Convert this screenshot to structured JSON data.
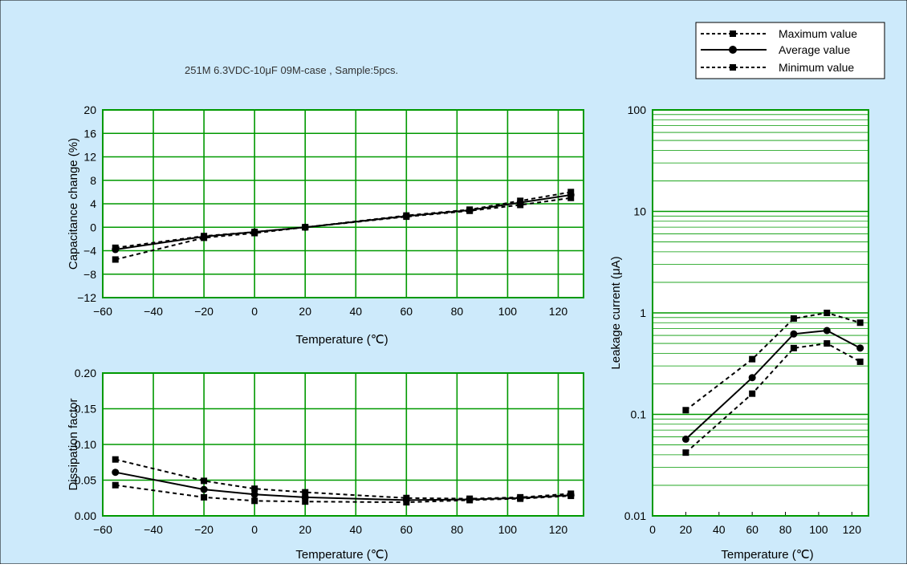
{
  "subtitle": "251M 6.3VDC-10μF 09M-case , Sample:5pcs.",
  "legend": {
    "max": "Maximum value",
    "avg": "Average value",
    "min": "Minimum value"
  },
  "colors": {
    "background": "#cdeafb",
    "plot_bg": "#ffffff",
    "grid": "#009900",
    "line": "#000000"
  },
  "chart_data": [
    {
      "id": "capacitance",
      "type": "line",
      "xlabel": "Temperature (℃)",
      "ylabel": "Capacitance change (%)",
      "xlim": [
        -60,
        130
      ],
      "ylim": [
        -12,
        20
      ],
      "xticks": [
        -60,
        -40,
        -20,
        0,
        20,
        40,
        60,
        80,
        100,
        120
      ],
      "yticks": [
        -12,
        -8,
        -4,
        0,
        4,
        8,
        12,
        16,
        20
      ],
      "ytick_labels": [
        "-12",
        "-8",
        "-4",
        "0",
        "4",
        "8",
        "12",
        "16",
        "20"
      ],
      "x": [
        -55,
        -20,
        0,
        20,
        60,
        85,
        105,
        125
      ],
      "series": [
        {
          "name": "Maximum value",
          "values": [
            -3.5,
            -1.5,
            -0.8,
            0.0,
            2.0,
            3.0,
            4.5,
            6.0
          ]
        },
        {
          "name": "Average value",
          "values": [
            -3.8,
            -1.6,
            -0.8,
            0.0,
            1.9,
            2.9,
            4.2,
            5.5
          ]
        },
        {
          "name": "Minimum value",
          "values": [
            -5.5,
            -1.8,
            -1.0,
            0.0,
            1.8,
            2.8,
            3.8,
            5.0
          ]
        }
      ]
    },
    {
      "id": "dissipation",
      "type": "line",
      "xlabel": "Temperature (℃)",
      "ylabel": "Dissipation factor",
      "xlim": [
        -60,
        130
      ],
      "ylim": [
        0,
        0.2
      ],
      "xticks": [
        -60,
        -40,
        -20,
        0,
        20,
        40,
        60,
        80,
        100,
        120
      ],
      "yticks": [
        0,
        0.05,
        0.1,
        0.15,
        0.2
      ],
      "ytick_labels": [
        "0.00",
        "0.05",
        "0.10",
        "0.15",
        "0.20"
      ],
      "x": [
        -55,
        -20,
        0,
        20,
        60,
        85,
        105,
        125
      ],
      "series": [
        {
          "name": "Maximum value",
          "values": [
            0.079,
            0.049,
            0.038,
            0.033,
            0.025,
            0.024,
            0.026,
            0.031
          ]
        },
        {
          "name": "Average value",
          "values": [
            0.061,
            0.037,
            0.03,
            0.026,
            0.022,
            0.023,
            0.025,
            0.029
          ]
        },
        {
          "name": "Minimum value",
          "values": [
            0.043,
            0.026,
            0.021,
            0.02,
            0.019,
            0.022,
            0.024,
            0.028
          ]
        }
      ]
    },
    {
      "id": "leakage",
      "type": "line",
      "xlabel": "Temperature (℃)",
      "ylabel": "Leakage current (μA)",
      "yscale": "log",
      "xlim": [
        0,
        130
      ],
      "ylim": [
        0.01,
        100
      ],
      "xticks": [
        0,
        20,
        40,
        60,
        80,
        100,
        120
      ],
      "yticks": [
        0.01,
        0.1,
        1,
        10,
        100
      ],
      "ytick_labels": [
        "0.01",
        "0.1",
        "1",
        "10",
        "100"
      ],
      "x": [
        20,
        60,
        85,
        105,
        125
      ],
      "series": [
        {
          "name": "Maximum value",
          "values": [
            0.11,
            0.35,
            0.88,
            1.0,
            0.8
          ]
        },
        {
          "name": "Average value",
          "values": [
            0.057,
            0.23,
            0.62,
            0.67,
            0.45
          ]
        },
        {
          "name": "Minimum value",
          "values": [
            0.042,
            0.16,
            0.45,
            0.5,
            0.33
          ]
        }
      ]
    }
  ]
}
